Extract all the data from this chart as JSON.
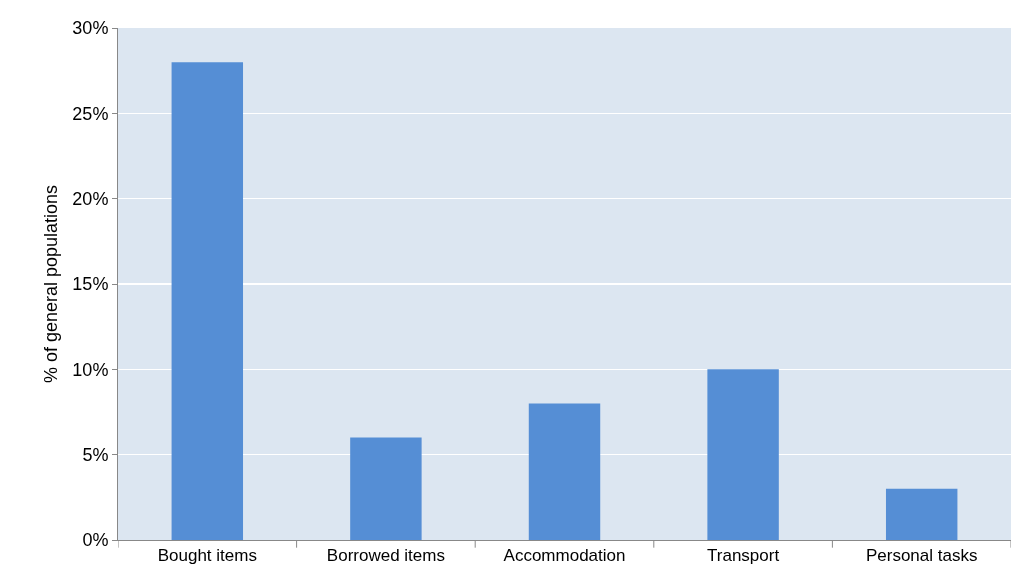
{
  "chart_data": {
    "type": "bar",
    "ylabel": "% of general populations",
    "categories": [
      "Bought items",
      "Borrowed items",
      "Accommodation",
      "Transport",
      "Personal tasks"
    ],
    "values": [
      28,
      6,
      8,
      10,
      3
    ],
    "color": "#558ed5",
    "ylim": [
      0,
      30
    ],
    "yticks": [
      {
        "value": 0,
        "label": "0%"
      },
      {
        "value": 5,
        "label": "5%"
      },
      {
        "value": 10,
        "label": "10%"
      },
      {
        "value": 15,
        "label": "15%"
      },
      {
        "value": 20,
        "label": "20%"
      },
      {
        "value": 25,
        "label": "25%"
      },
      {
        "value": 30,
        "label": "30%"
      }
    ],
    "grid": "y"
  }
}
